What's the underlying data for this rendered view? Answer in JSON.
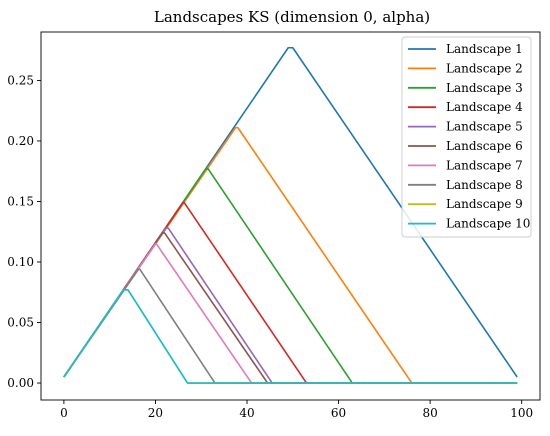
{
  "chart_data": {
    "type": "line",
    "title": "Landscapes KS (dimension 0, alpha)",
    "xlabel": "",
    "ylabel": "",
    "xlim": [
      -5,
      104
    ],
    "ylim": [
      -0.014,
      0.29
    ],
    "xticks": [
      0,
      20,
      40,
      60,
      80,
      100
    ],
    "yticks": [
      0.0,
      0.05,
      0.1,
      0.15,
      0.2,
      0.25
    ],
    "xtick_labels": [
      "0",
      "20",
      "40",
      "60",
      "80",
      "100"
    ],
    "ytick_labels": [
      "0.00",
      "0.05",
      "0.10",
      "0.15",
      "0.20",
      "0.25"
    ],
    "grid": false,
    "legend_position": "top-right",
    "series": [
      {
        "name": "Landscape 1",
        "color": "#1f77b4",
        "x": [
          0,
          49,
          50,
          99
        ],
        "y": [
          0.005,
          0.277,
          0.277,
          0.005
        ]
      },
      {
        "name": "Landscape 2",
        "color": "#ff7f0e",
        "x": [
          0,
          37.5,
          38,
          76,
          99
        ],
        "y": [
          0.005,
          0.211,
          0.211,
          0.0,
          0.0
        ]
      },
      {
        "name": "Landscape 3",
        "color": "#2ca02c",
        "x": [
          0,
          31,
          31.5,
          63,
          99
        ],
        "y": [
          0.005,
          0.177,
          0.177,
          0.0,
          0.0
        ]
      },
      {
        "name": "Landscape 4",
        "color": "#d62728",
        "x": [
          0,
          26,
          26.3,
          53,
          99
        ],
        "y": [
          0.005,
          0.149,
          0.149,
          0.0,
          0.0
        ]
      },
      {
        "name": "Landscape 5",
        "color": "#9467bd",
        "x": [
          0,
          22.3,
          22.8,
          45.5,
          99
        ],
        "y": [
          0.005,
          0.128,
          0.128,
          0.0,
          0.0
        ]
      },
      {
        "name": "Landscape 6",
        "color": "#8c564b",
        "x": [
          0,
          21.5,
          22,
          44.5,
          99
        ],
        "y": [
          0.005,
          0.124,
          0.124,
          0.0,
          0.0
        ]
      },
      {
        "name": "Landscape 7",
        "color": "#e377c2",
        "x": [
          0,
          20,
          20.2,
          41,
          99
        ],
        "y": [
          0.005,
          0.115,
          0.115,
          0.0,
          0.0
        ]
      },
      {
        "name": "Landscape 8",
        "color": "#7f7f7f",
        "x": [
          0,
          16.3,
          16.6,
          33,
          99
        ],
        "y": [
          0.005,
          0.094,
          0.094,
          0.0,
          0.0
        ]
      },
      {
        "name": "Landscape 9",
        "color": "#bcbd22",
        "x": [
          0,
          13,
          14,
          27,
          99
        ],
        "y": [
          0.005,
          0.077,
          0.077,
          0.0,
          0.0
        ]
      },
      {
        "name": "Landscape 10",
        "color": "#17becf",
        "x": [
          0,
          13,
          14,
          27,
          99
        ],
        "y": [
          0.005,
          0.077,
          0.077,
          0.0,
          0.0
        ]
      }
    ]
  }
}
